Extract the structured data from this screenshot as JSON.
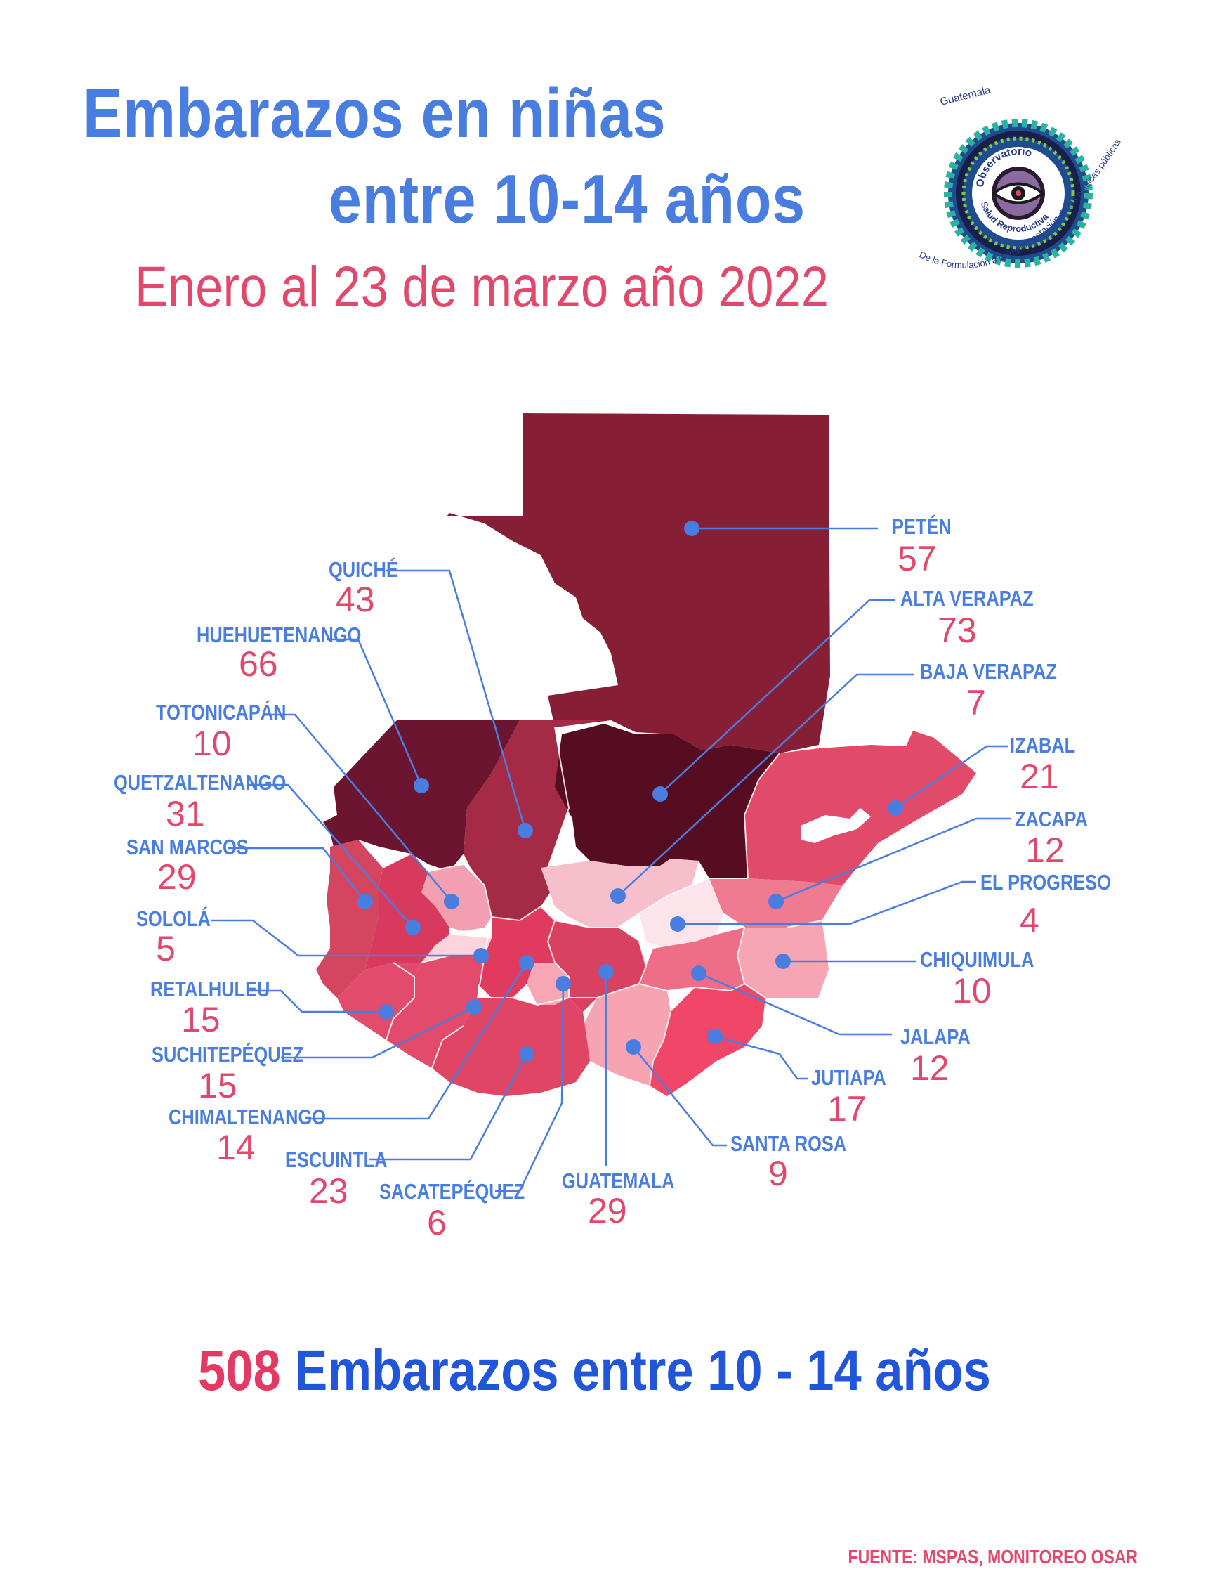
{
  "header": {
    "title_line1": "Embarazos en niñas",
    "title_line2": "entre 10-14 años",
    "subtitle": "Enero al 23 de marzo año 2022"
  },
  "logo": {
    "top_text": "Guatemala",
    "ring_top": "Observatorio",
    "ring_bottom": "Salud Reproductiva",
    "outer_text": "De la Formulación a la implementación de las políticas públicas",
    "icon": "eye-icon"
  },
  "departments": [
    {
      "name": "PETÉN",
      "value": "57"
    },
    {
      "name": "ALTA VERAPAZ",
      "value": "73"
    },
    {
      "name": "BAJA VERAPAZ",
      "value": "7"
    },
    {
      "name": "IZABAL",
      "value": "21"
    },
    {
      "name": "ZACAPA",
      "value": "12"
    },
    {
      "name": "EL PROGRESO",
      "value": "4"
    },
    {
      "name": "CHIQUIMULA",
      "value": "10"
    },
    {
      "name": "JALAPA",
      "value": "12"
    },
    {
      "name": "JUTIAPA",
      "value": "17"
    },
    {
      "name": "SANTA ROSA",
      "value": "9"
    },
    {
      "name": "GUATEMALA",
      "value": "29"
    },
    {
      "name": "SACATEPÉQUEZ",
      "value": "6"
    },
    {
      "name": "ESCUINTLA",
      "value": "23"
    },
    {
      "name": "CHIMALTENANGO",
      "value": "14"
    },
    {
      "name": "SUCHITEPÉQUEZ",
      "value": "15"
    },
    {
      "name": "RETALHULEU",
      "value": "15"
    },
    {
      "name": "SOLOLÁ",
      "value": "5"
    },
    {
      "name": "SAN MARCOS",
      "value": "29"
    },
    {
      "name": "QUETZALTENANGO",
      "value": "31"
    },
    {
      "name": "TOTONICAPÁN",
      "value": "10"
    },
    {
      "name": "HUEHUETENANGO",
      "value": "66"
    },
    {
      "name": "QUICHÉ",
      "value": "43"
    }
  ],
  "colors": {
    "title_blue": "#4a7de0",
    "accent_pink": "#e2486b",
    "total_blue": "#2156d9",
    "darkest": "#560d22",
    "dark": "#861f35",
    "marker": "#4a7de0"
  },
  "footer": {
    "total_number": "508",
    "total_text": "Embarazos entre 10 - 14 años",
    "source": "FUENTE: MSPAS, MONITOREO OSAR"
  }
}
